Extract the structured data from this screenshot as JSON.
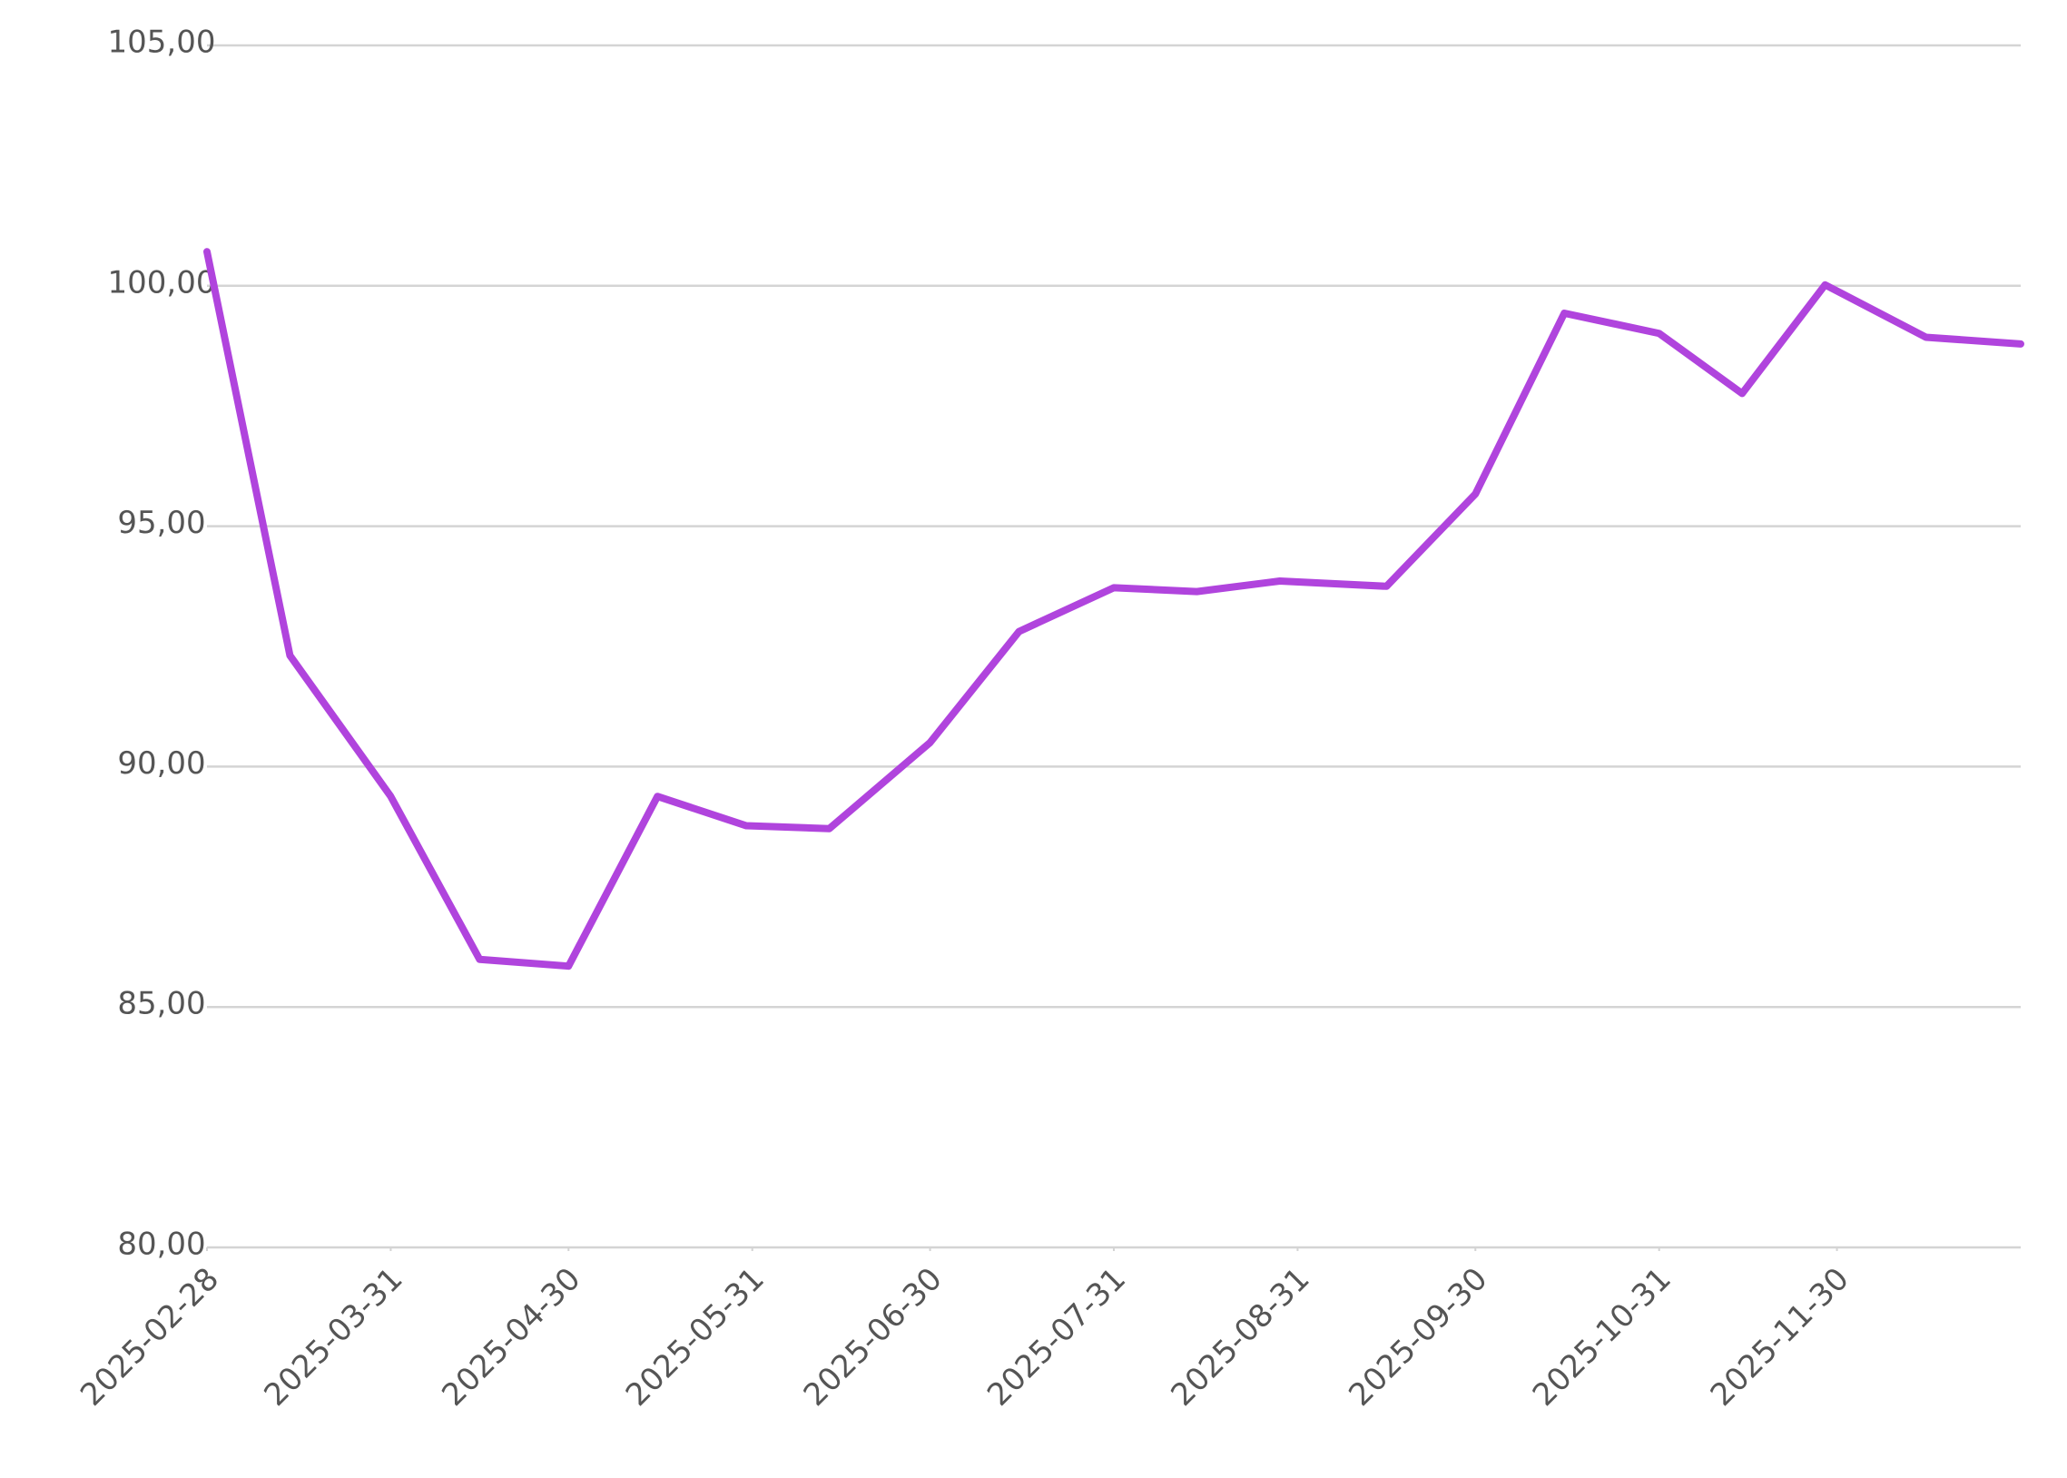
{
  "chart_data": {
    "type": "line",
    "x": [
      "2025-02-28",
      "2025-03-14",
      "2025-03-31",
      "2025-04-15",
      "2025-04-30",
      "2025-05-15",
      "2025-05-30",
      "2025-06-13",
      "2025-06-30",
      "2025-07-15",
      "2025-07-31",
      "2025-08-14",
      "2025-08-28",
      "2025-09-15",
      "2025-09-30",
      "2025-10-15",
      "2025-10-31",
      "2025-11-14",
      "2025-11-28",
      "2025-12-15",
      "2025-12-31"
    ],
    "series": [
      {
        "color": "#b044dd",
        "values": [
          100.71,
          92.31,
          89.38,
          85.99,
          85.85,
          89.38,
          88.77,
          88.71,
          90.5,
          92.81,
          93.72,
          93.64,
          93.86,
          93.75,
          95.67,
          99.43,
          99.01,
          97.76,
          100.02,
          98.93,
          98.79
        ]
      }
    ],
    "xlim": [
      "2025-02-28",
      "2025-12-31"
    ],
    "xticks": [
      "2025-02-28",
      "2025-03-31",
      "2025-04-30",
      "2025-05-31",
      "2025-06-30",
      "2025-07-31",
      "2025-08-31",
      "2025-09-30",
      "2025-10-31",
      "2025-11-30"
    ],
    "ylim": [
      80,
      105
    ],
    "yticks": [
      {
        "value": 80,
        "label": "80,00"
      },
      {
        "value": 85,
        "label": "85,00"
      },
      {
        "value": 90,
        "label": "90,00"
      },
      {
        "value": 95,
        "label": "95,00"
      },
      {
        "value": 100,
        "label": "100,00"
      },
      {
        "value": 105,
        "label": "105,00"
      }
    ],
    "grid": true
  }
}
